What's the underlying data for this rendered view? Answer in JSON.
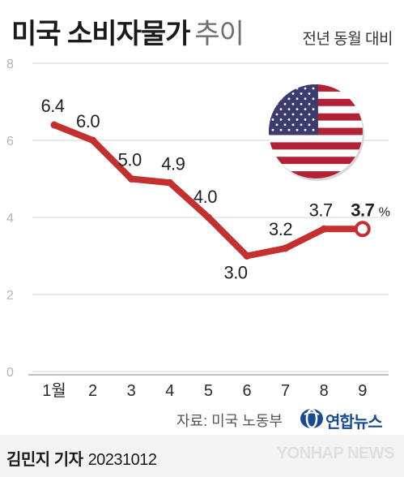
{
  "header": {
    "title_bold": "미국 소비자물가",
    "title_light": "추이",
    "subtitle": "전년 동월 대비"
  },
  "footer": {
    "source": "자료: 미국 노동부",
    "brand": "연합뉴스",
    "reporter": "김민지 기자",
    "date": "20231012",
    "watermark": "YONHAP NEWS"
  },
  "colors": {
    "line": "#c4302f",
    "grid": "#d6d6d6",
    "axis_text": "#b5b5b5",
    "brand": "#1a4a95"
  },
  "chart_data": {
    "type": "line",
    "categories": [
      "1월",
      "2",
      "3",
      "4",
      "5",
      "6",
      "7",
      "8",
      "9"
    ],
    "values": [
      6.4,
      6.0,
      5.0,
      4.9,
      4.0,
      3.0,
      3.2,
      3.7,
      3.7
    ],
    "value_labels": [
      "6.4",
      "6.0",
      "5.0",
      "4.9",
      "4.0",
      "3.0",
      "3.2",
      "3.7",
      "3.7"
    ],
    "last_value_unit": "%",
    "ylim": [
      0,
      8
    ],
    "yticks": [
      "0",
      "2",
      "4",
      "6",
      "8"
    ],
    "grid": true
  }
}
